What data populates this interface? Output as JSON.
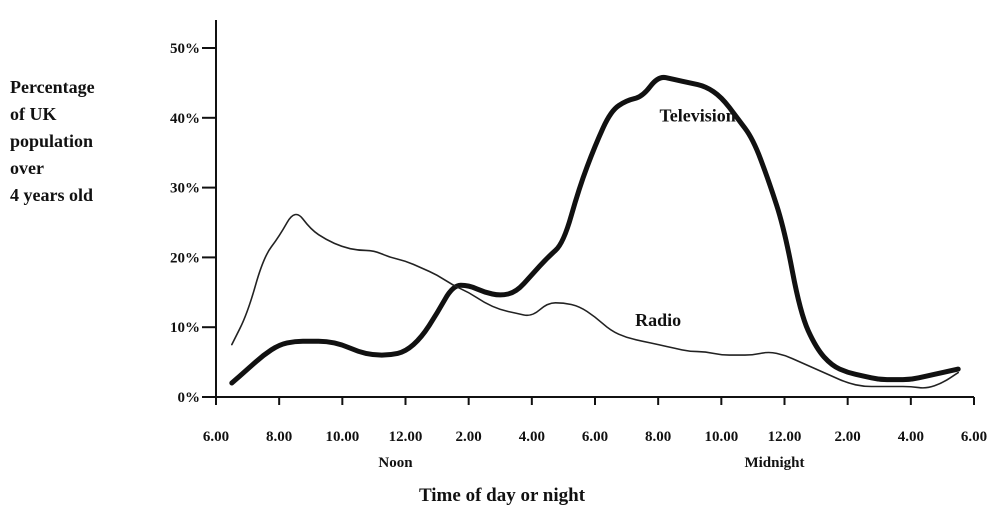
{
  "chart_data": {
    "type": "line",
    "title": "",
    "ylabel_lines": [
      "Percentage",
      "of UK",
      "population",
      "over",
      "4 years old"
    ],
    "xlabel": "Time of day or night",
    "ylim": [
      0,
      50
    ],
    "xlim": [
      6,
      30
    ],
    "y_ticks": [
      {
        "value": 0,
        "label": "0%"
      },
      {
        "value": 10,
        "label": "10%"
      },
      {
        "value": 20,
        "label": "20%"
      },
      {
        "value": 30,
        "label": "30%"
      },
      {
        "value": 40,
        "label": "40%"
      },
      {
        "value": 50,
        "label": "50%"
      }
    ],
    "x_ticks": [
      {
        "value": 6,
        "label": "6.00"
      },
      {
        "value": 8,
        "label": "8.00"
      },
      {
        "value": 10,
        "label": "10.00"
      },
      {
        "value": 12,
        "label": "12.00"
      },
      {
        "value": 14,
        "label": "2.00"
      },
      {
        "value": 16,
        "label": "4.00"
      },
      {
        "value": 18,
        "label": "6.00"
      },
      {
        "value": 20,
        "label": "8.00"
      },
      {
        "value": 22,
        "label": "10.00"
      },
      {
        "value": 24,
        "label": "12.00"
      },
      {
        "value": 26,
        "label": "2.00"
      },
      {
        "value": 28,
        "label": "4.00"
      },
      {
        "value": 30,
        "label": "6.00"
      }
    ],
    "x_sublabels": [
      {
        "value": 12,
        "label": "Noon"
      },
      {
        "value": 24,
        "label": "Midnight"
      }
    ],
    "grid": false,
    "series": [
      {
        "name": "Television",
        "color": "#111111",
        "x": [
          6.5,
          7.0,
          7.5,
          8.0,
          8.5,
          9.0,
          9.5,
          10.0,
          10.5,
          11.0,
          11.5,
          12.0,
          12.5,
          13.0,
          13.5,
          14.0,
          14.5,
          15.0,
          15.5,
          16.0,
          16.5,
          17.0,
          17.5,
          18.0,
          18.5,
          19.0,
          19.5,
          20.0,
          20.5,
          21.0,
          21.5,
          22.0,
          22.5,
          23.0,
          23.5,
          24.0,
          24.5,
          25.0,
          25.5,
          26.0,
          26.5,
          27.0,
          27.5,
          28.0,
          28.5,
          29.0,
          29.5
        ],
        "values": [
          2,
          4,
          6,
          7.5,
          8,
          8,
          8,
          7.5,
          6.5,
          6,
          6,
          6.5,
          8.5,
          12,
          16,
          16,
          15,
          14.5,
          15,
          17.5,
          20,
          22,
          30,
          36,
          41,
          42.5,
          43,
          46,
          45.5,
          45,
          44.5,
          43,
          40,
          37,
          31,
          24,
          12,
          7,
          4.5,
          3.5,
          3,
          2.5,
          2.5,
          2.5,
          3,
          3.5,
          4
        ]
      },
      {
        "name": "Radio",
        "color": "#222222",
        "x": [
          6.5,
          7.0,
          7.5,
          8.0,
          8.5,
          9.0,
          9.5,
          10.0,
          10.5,
          11.0,
          11.5,
          12.0,
          12.5,
          13.0,
          13.5,
          14.0,
          14.5,
          15.0,
          15.5,
          16.0,
          16.5,
          17.0,
          17.5,
          18.0,
          18.5,
          19.0,
          19.5,
          20.0,
          20.5,
          21.0,
          21.5,
          22.0,
          22.5,
          23.0,
          23.5,
          24.0,
          24.5,
          25.0,
          25.5,
          26.0,
          26.5,
          27.0,
          27.5,
          28.0,
          28.5,
          29.0,
          29.5
        ],
        "values": [
          7.5,
          12,
          20,
          23,
          27,
          24,
          22.5,
          21.5,
          21,
          21,
          20,
          19.5,
          18.5,
          17.5,
          16,
          15,
          13.5,
          12.5,
          12,
          11.5,
          13.5,
          13.5,
          13,
          11.5,
          9.5,
          8.5,
          8,
          7.5,
          7,
          6.5,
          6.5,
          6,
          6,
          6,
          6.5,
          6,
          5,
          4,
          3,
          2,
          1.5,
          1.5,
          1.5,
          1.5,
          1.2,
          2,
          3.5
        ]
      }
    ]
  }
}
